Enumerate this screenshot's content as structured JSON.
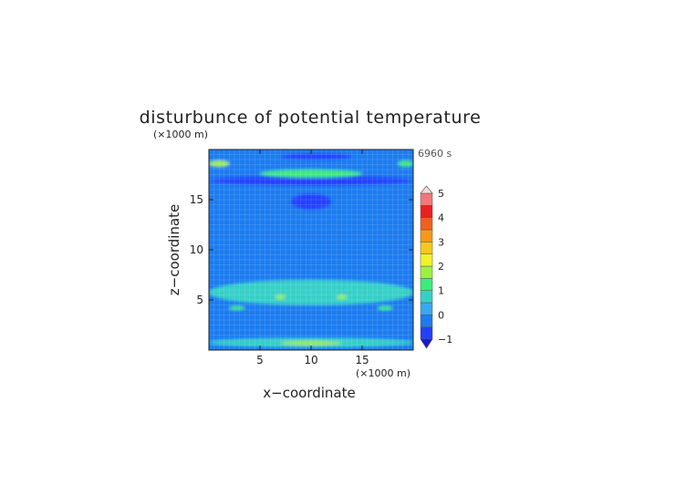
{
  "chart_data": {
    "type": "heatmap",
    "title": "disturbunce of potential temperature",
    "time_label": "6960 s",
    "xlabel": "x−coordinate",
    "ylabel": "z−coordinate",
    "x_unit": "(×1000 m)",
    "y_unit": "(×1000 m)",
    "xlim": [
      0,
      20
    ],
    "ylim": [
      0,
      20
    ],
    "x_ticks": [
      5,
      10,
      15
    ],
    "y_ticks": [
      5,
      10,
      15
    ],
    "grid": true,
    "colorbar": {
      "levels": [
        -1,
        -0.5,
        0,
        0.5,
        1,
        1.5,
        2,
        2.5,
        3,
        3.5,
        4,
        4.5,
        5
      ],
      "tick_values": [
        -1,
        0,
        1,
        2,
        3,
        4,
        5
      ],
      "tick_labels": [
        "−1",
        "0",
        "1",
        "2",
        "3",
        "4",
        "5"
      ],
      "colors": [
        "#2340ff",
        "#1e7cf0",
        "#39a8ee",
        "#35d0c8",
        "#3cec7a",
        "#9ef040",
        "#f2f22a",
        "#f7c81c",
        "#f7981a",
        "#f06020",
        "#ea2020",
        "#f27878",
        "#f7b0b0"
      ],
      "under_color": "#1a1ac8",
      "over_color": "#fbd8d8"
    },
    "features": [
      {
        "name": "background",
        "value": -0.1
      },
      {
        "name": "upper-dark-band",
        "x": [
          0,
          20
        ],
        "z": [
          16.4,
          17.4
        ],
        "value": -0.9
      },
      {
        "name": "top-dark-band",
        "x": [
          7,
          14
        ],
        "z": [
          19.0,
          19.6
        ],
        "value": -0.9
      },
      {
        "name": "central-warm-arc",
        "x": [
          5,
          15
        ],
        "z": [
          17.2,
          18.0
        ],
        "value": 1.1
      },
      {
        "name": "left-hotspot",
        "x": [
          0,
          2
        ],
        "z": [
          18.3,
          18.9
        ],
        "value": 1.6
      },
      {
        "name": "right-hotspot",
        "x": [
          18.5,
          20
        ],
        "z": [
          18.3,
          18.9
        ],
        "value": 1.4
      },
      {
        "name": "central-cold-core",
        "x": [
          8,
          12
        ],
        "z": [
          14.0,
          15.6
        ],
        "value": -0.9
      },
      {
        "name": "mid-warm-layer",
        "x": [
          0,
          20
        ],
        "z": [
          4.5,
          7.0
        ],
        "value": 0.5
      },
      {
        "name": "left-yellow-blob",
        "x": [
          6.5,
          7.5
        ],
        "z": [
          5.1,
          5.5
        ],
        "value": 1.6
      },
      {
        "name": "right-yellow-blob",
        "x": [
          12.5,
          13.5
        ],
        "z": [
          5.1,
          5.5
        ],
        "value": 1.6
      },
      {
        "name": "lower-yellow-blob-left",
        "x": [
          2,
          3.5
        ],
        "z": [
          4.0,
          4.4
        ],
        "value": 1.4
      },
      {
        "name": "lower-yellow-blob-right",
        "x": [
          16.5,
          18
        ],
        "z": [
          4.0,
          4.4
        ],
        "value": 1.4
      },
      {
        "name": "bottom-warm-band",
        "x": [
          0,
          20
        ],
        "z": [
          0.3,
          1.2
        ],
        "value": 0.8
      },
      {
        "name": "bottom-yellow-core",
        "x": [
          7,
          13
        ],
        "z": [
          0.5,
          0.9
        ],
        "value": 1.5
      }
    ]
  }
}
